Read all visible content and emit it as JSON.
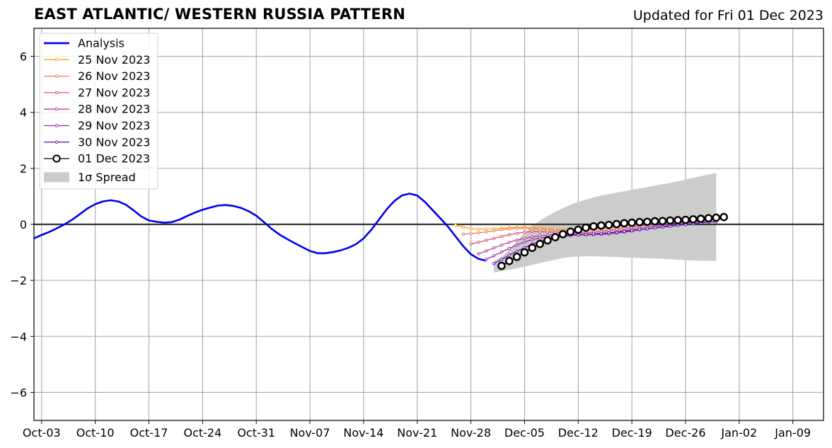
{
  "chart_data": {
    "type": "line",
    "title": "EAST ATLANTIC/ WESTERN RUSSIA PATTERN",
    "subtitle": "Updated for Fri 01 Dec 2023",
    "ylim": [
      -7,
      7
    ],
    "yticks": [
      -6,
      -4,
      -2,
      0,
      2,
      4,
      6
    ],
    "ytick_labels": [
      "−6",
      "−4",
      "−2",
      "0",
      "2",
      "4",
      "6"
    ],
    "xlim": [
      "2023-10-02",
      "2024-01-13"
    ],
    "xticks": [
      "2023-10-03",
      "2023-10-10",
      "2023-10-17",
      "2023-10-24",
      "2023-10-31",
      "2023-11-07",
      "2023-11-14",
      "2023-11-21",
      "2023-11-28",
      "2023-12-05",
      "2023-12-12",
      "2023-12-19",
      "2023-12-26",
      "2024-01-02",
      "2024-01-09"
    ],
    "xtick_labels": [
      "Oct-03",
      "Oct-10",
      "Oct-17",
      "Oct-24",
      "Oct-31",
      "Nov-07",
      "Nov-14",
      "Nov-21",
      "Nov-28",
      "Dec-05",
      "Dec-12",
      "Dec-19",
      "Dec-26",
      "Jan-02",
      "Jan-09"
    ],
    "grid": true,
    "legend_position": "top-left",
    "zero_line": 0,
    "analysis": {
      "name": "Analysis",
      "color": "#0000ee",
      "x": [
        "2023-10-02",
        "2023-10-03",
        "2023-10-04",
        "2023-10-05",
        "2023-10-06",
        "2023-10-07",
        "2023-10-08",
        "2023-10-09",
        "2023-10-10",
        "2023-10-11",
        "2023-10-12",
        "2023-10-13",
        "2023-10-14",
        "2023-10-15",
        "2023-10-16",
        "2023-10-17",
        "2023-10-18",
        "2023-10-19",
        "2023-10-20",
        "2023-10-21",
        "2023-10-22",
        "2023-10-23",
        "2023-10-24",
        "2023-10-25",
        "2023-10-26",
        "2023-10-27",
        "2023-10-28",
        "2023-10-29",
        "2023-10-30",
        "2023-10-31",
        "2023-11-01",
        "2023-11-02",
        "2023-11-03",
        "2023-11-04",
        "2023-11-05",
        "2023-11-06",
        "2023-11-07",
        "2023-11-08",
        "2023-11-09",
        "2023-11-10",
        "2023-11-11",
        "2023-11-12",
        "2023-11-13",
        "2023-11-14",
        "2023-11-15",
        "2023-11-16",
        "2023-11-17",
        "2023-11-18",
        "2023-11-19",
        "2023-11-20",
        "2023-11-21",
        "2023-11-22",
        "2023-11-23",
        "2023-11-24",
        "2023-11-25",
        "2023-11-26",
        "2023-11-27",
        "2023-11-28",
        "2023-11-29",
        "2023-11-30"
      ],
      "values": [
        -0.5,
        -0.38,
        -0.27,
        -0.14,
        0.0,
        0.17,
        0.37,
        0.57,
        0.72,
        0.82,
        0.86,
        0.82,
        0.7,
        0.5,
        0.28,
        0.14,
        0.09,
        0.06,
        0.08,
        0.17,
        0.3,
        0.42,
        0.52,
        0.6,
        0.67,
        0.69,
        0.66,
        0.59,
        0.47,
        0.31,
        0.08,
        -0.16,
        -0.36,
        -0.52,
        -0.67,
        -0.81,
        -0.95,
        -1.03,
        -1.03,
        -0.99,
        -0.93,
        -0.84,
        -0.71,
        -0.5,
        -0.2,
        0.17,
        0.53,
        0.83,
        1.03,
        1.1,
        1.03,
        0.8,
        0.51,
        0.22,
        -0.08,
        -0.43,
        -0.78,
        -1.07,
        -1.23,
        -1.3
      ]
    },
    "spread": {
      "name": "1σ Spread",
      "color": "#cccccc",
      "x": [
        "2023-12-01",
        "2023-12-02",
        "2023-12-03",
        "2023-12-04",
        "2023-12-05",
        "2023-12-06",
        "2023-12-07",
        "2023-12-08",
        "2023-12-09",
        "2023-12-10",
        "2023-12-11",
        "2023-12-12",
        "2023-12-13",
        "2023-12-14",
        "2023-12-15",
        "2023-12-16",
        "2023-12-17",
        "2023-12-18",
        "2023-12-19",
        "2023-12-20",
        "2023-12-21",
        "2023-12-22",
        "2023-12-23",
        "2023-12-24",
        "2023-12-25",
        "2023-12-26",
        "2023-12-27",
        "2023-12-28",
        "2023-12-29",
        "2023-12-30"
      ],
      "upper": [
        -1.3,
        -1.17,
        -0.9,
        -0.6,
        -0.3,
        -0.05,
        0.13,
        0.3,
        0.45,
        0.58,
        0.7,
        0.8,
        0.88,
        0.96,
        1.03,
        1.08,
        1.13,
        1.18,
        1.23,
        1.28,
        1.33,
        1.38,
        1.43,
        1.48,
        1.54,
        1.6,
        1.66,
        1.72,
        1.78,
        1.84
      ],
      "lower": [
        -1.72,
        -1.67,
        -1.62,
        -1.57,
        -1.51,
        -1.45,
        -1.38,
        -1.32,
        -1.26,
        -1.2,
        -1.17,
        -1.15,
        -1.14,
        -1.14,
        -1.15,
        -1.16,
        -1.17,
        -1.18,
        -1.19,
        -1.2,
        -1.21,
        -1.22,
        -1.23,
        -1.24,
        -1.26,
        -1.28,
        -1.29,
        -1.3,
        -1.3,
        -1.3
      ]
    },
    "series": [
      {
        "name": "25 Nov 2023",
        "color": "#f5a623",
        "x0": "2023-11-26",
        "values": [
          -0.03,
          -0.1,
          -0.15,
          -0.17,
          -0.17,
          -0.16,
          -0.14,
          -0.12,
          -0.11,
          -0.1,
          -0.1,
          -0.11,
          -0.13,
          -0.15,
          -0.17,
          -0.18,
          -0.18,
          -0.17,
          -0.15,
          -0.12,
          -0.1,
          -0.07,
          -0.04,
          -0.01,
          0.02,
          0.05,
          0.08,
          0.1,
          0.12,
          0.14
        ]
      },
      {
        "name": "26 Nov 2023",
        "color": "#ef7a4a",
        "x0": "2023-11-27",
        "values": [
          -0.35,
          -0.33,
          -0.3,
          -0.27,
          -0.23,
          -0.19,
          -0.16,
          -0.14,
          -0.14,
          -0.15,
          -0.17,
          -0.19,
          -0.21,
          -0.23,
          -0.23,
          -0.22,
          -0.2,
          -0.18,
          -0.15,
          -0.12,
          -0.09,
          -0.06,
          -0.03,
          0.0,
          0.03,
          0.06,
          0.09,
          0.12,
          0.14,
          0.16
        ]
      },
      {
        "name": "27 Nov 2023",
        "color": "#d9506e",
        "x0": "2023-11-28",
        "values": [
          -0.7,
          -0.64,
          -0.57,
          -0.5,
          -0.43,
          -0.37,
          -0.32,
          -0.28,
          -0.26,
          -0.26,
          -0.27,
          -0.28,
          -0.29,
          -0.3,
          -0.31,
          -0.3,
          -0.28,
          -0.25,
          -0.22,
          -0.18,
          -0.14,
          -0.1,
          -0.06,
          -0.02,
          0.02,
          0.05,
          0.08,
          0.11,
          0.14,
          0.16
        ]
      },
      {
        "name": "28 Nov 2023",
        "color": "#b83c94",
        "x0": "2023-11-29",
        "values": [
          -1.05,
          -0.95,
          -0.84,
          -0.74,
          -0.64,
          -0.56,
          -0.5,
          -0.45,
          -0.41,
          -0.38,
          -0.36,
          -0.35,
          -0.36,
          -0.36,
          -0.36,
          -0.35,
          -0.33,
          -0.3,
          -0.26,
          -0.22,
          -0.18,
          -0.14,
          -0.1,
          -0.06,
          -0.02,
          0.02,
          0.05,
          0.08,
          0.11,
          0.13
        ]
      },
      {
        "name": "29 Nov 2023",
        "color": "#9a28b0",
        "x0": "2023-11-30",
        "values": [
          -1.25,
          -1.12,
          -0.99,
          -0.86,
          -0.74,
          -0.63,
          -0.55,
          -0.49,
          -0.45,
          -0.42,
          -0.4,
          -0.39,
          -0.38,
          -0.38,
          -0.37,
          -0.36,
          -0.34,
          -0.31,
          -0.28,
          -0.24,
          -0.2,
          -0.16,
          -0.12,
          -0.08,
          -0.04,
          0.0,
          0.04,
          0.07,
          0.1,
          0.12
        ]
      },
      {
        "name": "30 Nov 2023",
        "color": "#5e1ab0",
        "x0": "2023-12-01",
        "values": [
          -1.4,
          -1.25,
          -1.1,
          -0.96,
          -0.83,
          -0.71,
          -0.61,
          -0.53,
          -0.47,
          -0.43,
          -0.4,
          -0.38,
          -0.36,
          -0.34,
          -0.32,
          -0.3,
          -0.28,
          -0.25,
          -0.22,
          -0.19,
          -0.16,
          -0.13,
          -0.1,
          -0.07,
          -0.04,
          -0.01,
          0.02,
          0.05,
          0.08,
          0.1
        ]
      },
      {
        "name": "01 Dec 2023",
        "color": "#000000",
        "x0": "2023-12-02",
        "marker": "open-circle",
        "values": [
          -1.48,
          -1.31,
          -1.16,
          -1.0,
          -0.84,
          -0.7,
          -0.57,
          -0.46,
          -0.35,
          -0.26,
          -0.19,
          -0.12,
          -0.07,
          -0.04,
          -0.02,
          0.01,
          0.04,
          0.06,
          0.08,
          0.09,
          0.11,
          0.12,
          0.14,
          0.15,
          0.16,
          0.18,
          0.2,
          0.22,
          0.24,
          0.26
        ]
      }
    ]
  }
}
